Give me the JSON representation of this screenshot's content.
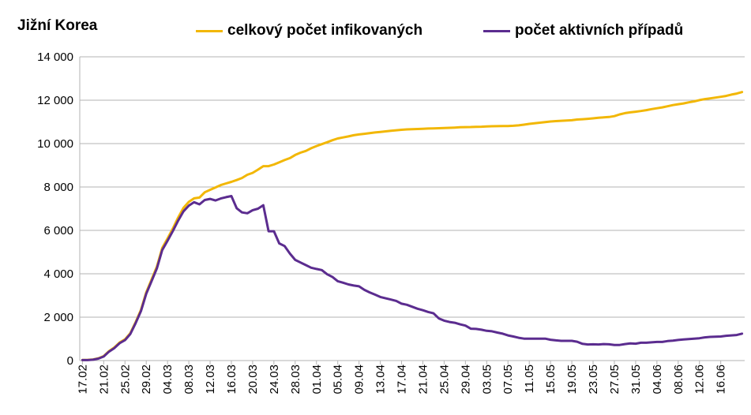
{
  "chart_data": {
    "type": "line",
    "title": "Jižní Korea",
    "xlabel": "",
    "ylabel": "",
    "ylim": [
      0,
      14000
    ],
    "yticks": [
      0,
      2000,
      4000,
      6000,
      8000,
      10000,
      12000,
      14000
    ],
    "ytick_labels": [
      "0",
      "2 000",
      "4 000",
      "6 000",
      "8 000",
      "10 000",
      "12 000",
      "14 000"
    ],
    "grid": "horizontal",
    "legend": "top",
    "x_start": "17.02",
    "x_end": "20.06",
    "x_tick_labels": [
      "17.02",
      "21.02",
      "25.02",
      "29.02",
      "04.03",
      "08.03",
      "12.03",
      "16.03",
      "20.03",
      "24.03",
      "28.03",
      "01.04",
      "05.04",
      "09.04",
      "13.04",
      "17.04",
      "21.04",
      "25.04",
      "29.04",
      "03.05",
      "07.05",
      "11.05",
      "15.05",
      "19.05",
      "23.05",
      "27.05",
      "31.05",
      "04.06",
      "08.06",
      "12.06",
      "16.06"
    ],
    "series": [
      {
        "name": "celkový počet infikovaných",
        "color": "#f2b705",
        "points": [
          [
            "17.02",
            30
          ],
          [
            "18.02",
            31
          ],
          [
            "19.02",
            51
          ],
          [
            "20.02",
            104
          ],
          [
            "21.02",
            204
          ],
          [
            "22.02",
            433
          ],
          [
            "23.02",
            602
          ],
          [
            "24.02",
            833
          ],
          [
            "25.02",
            977
          ],
          [
            "26.02",
            1261
          ],
          [
            "27.02",
            1766
          ],
          [
            "28.02",
            2337
          ],
          [
            "29.02",
            3150
          ],
          [
            "01.03",
            3736
          ],
          [
            "02.03",
            4335
          ],
          [
            "03.03",
            5186
          ],
          [
            "04.03",
            5621
          ],
          [
            "05.03",
            6088
          ],
          [
            "06.03",
            6593
          ],
          [
            "07.03",
            7041
          ],
          [
            "08.03",
            7313
          ],
          [
            "09.03",
            7478
          ],
          [
            "10.03",
            7513
          ],
          [
            "11.03",
            7755
          ],
          [
            "12.03",
            7869
          ],
          [
            "13.03",
            7979
          ],
          [
            "14.03",
            8086
          ],
          [
            "15.03",
            8162
          ],
          [
            "16.03",
            8236
          ],
          [
            "17.03",
            8320
          ],
          [
            "18.03",
            8413
          ],
          [
            "19.03",
            8565
          ],
          [
            "20.03",
            8652
          ],
          [
            "21.03",
            8799
          ],
          [
            "22.03",
            8961
          ],
          [
            "23.03",
            8961
          ],
          [
            "24.03",
            9037
          ],
          [
            "25.03",
            9137
          ],
          [
            "26.03",
            9241
          ],
          [
            "27.03",
            9332
          ],
          [
            "28.03",
            9478
          ],
          [
            "29.03",
            9583
          ],
          [
            "30.03",
            9661
          ],
          [
            "31.03",
            9786
          ],
          [
            "01.04",
            9887
          ],
          [
            "02.04",
            9976
          ],
          [
            "03.04",
            10062
          ],
          [
            "04.04",
            10156
          ],
          [
            "05.04",
            10237
          ],
          [
            "06.04",
            10284
          ],
          [
            "07.04",
            10331
          ],
          [
            "08.04",
            10384
          ],
          [
            "09.04",
            10423
          ],
          [
            "10.04",
            10450
          ],
          [
            "11.04",
            10480
          ],
          [
            "12.04",
            10512
          ],
          [
            "13.04",
            10537
          ],
          [
            "14.04",
            10564
          ],
          [
            "15.04",
            10591
          ],
          [
            "16.04",
            10613
          ],
          [
            "17.04",
            10635
          ],
          [
            "18.04",
            10653
          ],
          [
            "19.04",
            10661
          ],
          [
            "20.04",
            10674
          ],
          [
            "21.04",
            10683
          ],
          [
            "22.04",
            10694
          ],
          [
            "23.04",
            10702
          ],
          [
            "24.04",
            10708
          ],
          [
            "25.04",
            10718
          ],
          [
            "26.04",
            10728
          ],
          [
            "27.04",
            10738
          ],
          [
            "28.04",
            10752
          ],
          [
            "29.04",
            10761
          ],
          [
            "30.04",
            10765
          ],
          [
            "01.05",
            10774
          ],
          [
            "02.05",
            10780
          ],
          [
            "03.05",
            10793
          ],
          [
            "04.05",
            10801
          ],
          [
            "05.05",
            10804
          ],
          [
            "06.05",
            10806
          ],
          [
            "07.05",
            10810
          ],
          [
            "08.05",
            10822
          ],
          [
            "09.05",
            10840
          ],
          [
            "10.05",
            10874
          ],
          [
            "11.05",
            10909
          ],
          [
            "12.05",
            10936
          ],
          [
            "13.05",
            10962
          ],
          [
            "14.05",
            10991
          ],
          [
            "15.05",
            11018
          ],
          [
            "16.05",
            11037
          ],
          [
            "17.05",
            11050
          ],
          [
            "18.05",
            11065
          ],
          [
            "19.05",
            11078
          ],
          [
            "20.05",
            11110
          ],
          [
            "21.05",
            11122
          ],
          [
            "22.05",
            11142
          ],
          [
            "23.05",
            11165
          ],
          [
            "24.05",
            11190
          ],
          [
            "25.05",
            11206
          ],
          [
            "26.05",
            11225
          ],
          [
            "27.05",
            11265
          ],
          [
            "28.05",
            11344
          ],
          [
            "29.05",
            11402
          ],
          [
            "30.05",
            11441
          ],
          [
            "31.05",
            11468
          ],
          [
            "01.06",
            11503
          ],
          [
            "02.06",
            11541
          ],
          [
            "03.06",
            11590
          ],
          [
            "04.06",
            11629
          ],
          [
            "05.06",
            11668
          ],
          [
            "06.06",
            11719
          ],
          [
            "07.06",
            11776
          ],
          [
            "08.06",
            11814
          ],
          [
            "09.06",
            11852
          ],
          [
            "10.06",
            11902
          ],
          [
            "11.06",
            11947
          ],
          [
            "12.06",
            12003
          ],
          [
            "13.06",
            12051
          ],
          [
            "14.06",
            12085
          ],
          [
            "15.06",
            12121
          ],
          [
            "16.06",
            12155
          ],
          [
            "17.06",
            12198
          ],
          [
            "18.06",
            12257
          ],
          [
            "19.06",
            12306
          ],
          [
            "20.06",
            12373
          ]
        ]
      },
      {
        "name": "počet aktivních případů",
        "color": "#5b2c8f",
        "points": [
          [
            "17.02",
            20
          ],
          [
            "18.02",
            20
          ],
          [
            "19.02",
            40
          ],
          [
            "20.02",
            90
          ],
          [
            "21.02",
            185
          ],
          [
            "22.02",
            410
          ],
          [
            "23.02",
            575
          ],
          [
            "24.02",
            800
          ],
          [
            "25.02",
            940
          ],
          [
            "26.02",
            1220
          ],
          [
            "27.02",
            1720
          ],
          [
            "28.02",
            2280
          ],
          [
            "29.02",
            3080
          ],
          [
            "01.03",
            3660
          ],
          [
            "02.03",
            4250
          ],
          [
            "03.03",
            5090
          ],
          [
            "04.03",
            5520
          ],
          [
            "05.03",
            5970
          ],
          [
            "06.03",
            6450
          ],
          [
            "07.03",
            6880
          ],
          [
            "08.03",
            7140
          ],
          [
            "09.03",
            7300
          ],
          [
            "10.03",
            7200
          ],
          [
            "11.03",
            7400
          ],
          [
            "12.03",
            7450
          ],
          [
            "13.03",
            7380
          ],
          [
            "14.03",
            7470
          ],
          [
            "15.03",
            7530
          ],
          [
            "16.03",
            7580
          ],
          [
            "17.03",
            7020
          ],
          [
            "18.03",
            6830
          ],
          [
            "19.03",
            6790
          ],
          [
            "20.03",
            6930
          ],
          [
            "21.03",
            7000
          ],
          [
            "22.03",
            7160
          ],
          [
            "23.03",
            5960
          ],
          [
            "24.03",
            5960
          ],
          [
            "25.03",
            5400
          ],
          [
            "26.03",
            5280
          ],
          [
            "27.03",
            4930
          ],
          [
            "28.03",
            4640
          ],
          [
            "29.03",
            4520
          ],
          [
            "30.03",
            4400
          ],
          [
            "31.03",
            4280
          ],
          [
            "01.04",
            4220
          ],
          [
            "02.04",
            4170
          ],
          [
            "03.04",
            3980
          ],
          [
            "04.04",
            3850
          ],
          [
            "05.04",
            3660
          ],
          [
            "06.04",
            3590
          ],
          [
            "07.04",
            3510
          ],
          [
            "08.04",
            3460
          ],
          [
            "09.04",
            3420
          ],
          [
            "10.04",
            3260
          ],
          [
            "11.04",
            3140
          ],
          [
            "12.04",
            3040
          ],
          [
            "13.04",
            2930
          ],
          [
            "14.04",
            2870
          ],
          [
            "15.04",
            2810
          ],
          [
            "16.04",
            2750
          ],
          [
            "17.04",
            2620
          ],
          [
            "18.04",
            2570
          ],
          [
            "19.04",
            2480
          ],
          [
            "20.04",
            2390
          ],
          [
            "21.04",
            2320
          ],
          [
            "22.04",
            2240
          ],
          [
            "23.04",
            2180
          ],
          [
            "24.04",
            1940
          ],
          [
            "25.04",
            1840
          ],
          [
            "26.04",
            1780
          ],
          [
            "27.04",
            1740
          ],
          [
            "28.04",
            1670
          ],
          [
            "29.04",
            1610
          ],
          [
            "30.04",
            1470
          ],
          [
            "01.05",
            1460
          ],
          [
            "02.05",
            1420
          ],
          [
            "03.05",
            1370
          ],
          [
            "04.05",
            1350
          ],
          [
            "05.05",
            1290
          ],
          [
            "06.05",
            1240
          ],
          [
            "07.05",
            1160
          ],
          [
            "08.05",
            1110
          ],
          [
            "09.05",
            1050
          ],
          [
            "10.05",
            1010
          ],
          [
            "11.05",
            1010
          ],
          [
            "12.05",
            1010
          ],
          [
            "13.05",
            1010
          ],
          [
            "14.05",
            1010
          ],
          [
            "15.05",
            960
          ],
          [
            "16.05",
            930
          ],
          [
            "17.05",
            910
          ],
          [
            "18.05",
            910
          ],
          [
            "19.05",
            910
          ],
          [
            "20.05",
            870
          ],
          [
            "21.05",
            770
          ],
          [
            "22.05",
            740
          ],
          [
            "23.05",
            750
          ],
          [
            "24.05",
            740
          ],
          [
            "25.05",
            760
          ],
          [
            "26.05",
            750
          ],
          [
            "27.05",
            720
          ],
          [
            "28.05",
            720
          ],
          [
            "29.05",
            760
          ],
          [
            "30.05",
            790
          ],
          [
            "31.05",
            780
          ],
          [
            "01.06",
            820
          ],
          [
            "02.06",
            820
          ],
          [
            "03.06",
            840
          ],
          [
            "04.06",
            860
          ],
          [
            "05.06",
            860
          ],
          [
            "06.06",
            900
          ],
          [
            "07.06",
            920
          ],
          [
            "08.06",
            950
          ],
          [
            "09.06",
            970
          ],
          [
            "10.06",
            990
          ],
          [
            "11.06",
            1010
          ],
          [
            "12.06",
            1030
          ],
          [
            "13.06",
            1070
          ],
          [
            "14.06",
            1090
          ],
          [
            "15.06",
            1100
          ],
          [
            "16.06",
            1110
          ],
          [
            "17.06",
            1140
          ],
          [
            "18.06",
            1160
          ],
          [
            "19.06",
            1180
          ],
          [
            "20.06",
            1240
          ]
        ]
      }
    ]
  }
}
